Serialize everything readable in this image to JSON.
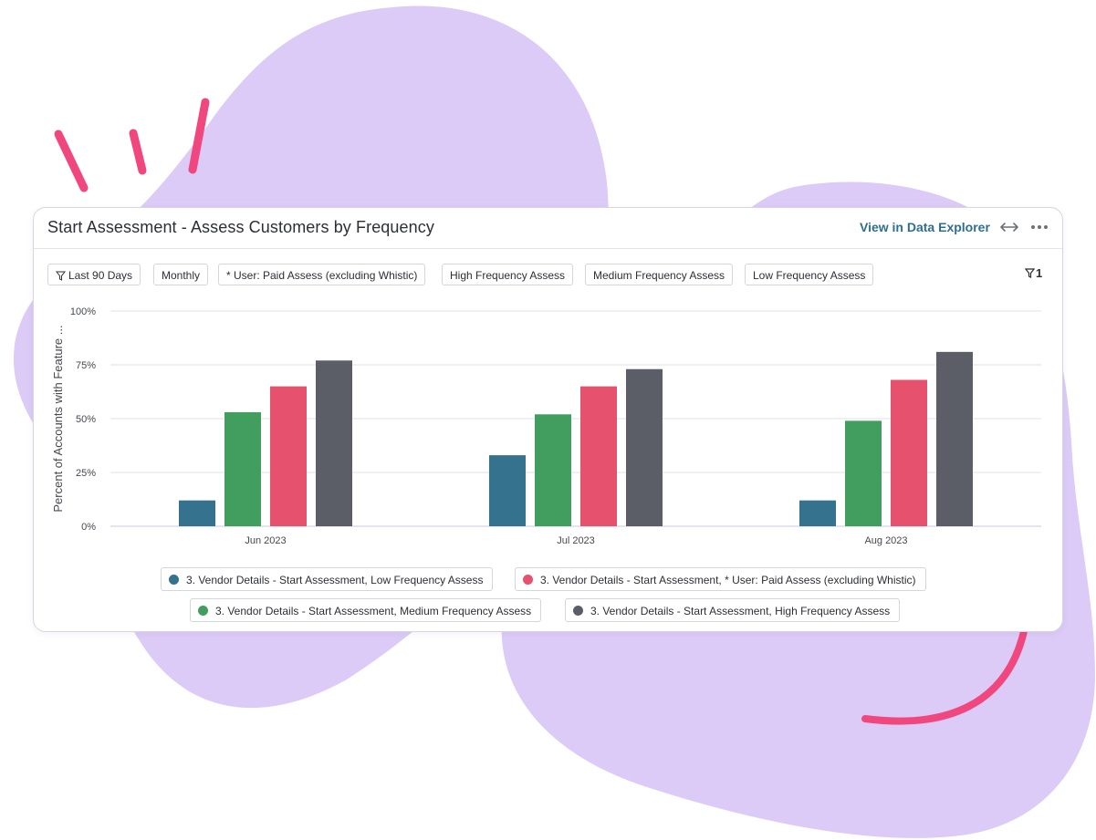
{
  "colors": {
    "blob": "#dccbf7",
    "accent_pink": "#f0477f",
    "link": "#2e6f8e"
  },
  "header": {
    "title": "Start Assessment - Assess Customers by Frequency",
    "explorer_link": "View in Data Explorer",
    "expand_icon": "expand-arrows-icon",
    "more_icon": "more-dots-icon"
  },
  "filters": {
    "chips": [
      {
        "label": "Last 90 Days",
        "icon": "filter-icon"
      },
      {
        "label": "Monthly"
      },
      {
        "label": "* User: Paid Assess (excluding Whistic)"
      },
      {
        "label": "High Frequency Assess"
      },
      {
        "label": "Medium Frequency Assess"
      },
      {
        "label": "Low Frequency Assess"
      }
    ],
    "count_label": "1",
    "count_icon": "filter-icon"
  },
  "chart_data": {
    "type": "bar",
    "categories": [
      "Jun 2023",
      "Jul 2023",
      "Aug 2023"
    ],
    "ylabel": "Percent of Accounts with Feature ...",
    "ylim": [
      0,
      100
    ],
    "yticks": [
      "0%",
      "25%",
      "50%",
      "75%",
      "100%"
    ],
    "grid": true,
    "legend_position": "bottom",
    "series": [
      {
        "name": "3. Vendor Details - Start Assessment, Low Frequency Assess",
        "color": "#35728d",
        "values": [
          12,
          33,
          12
        ]
      },
      {
        "name": "3. Vendor Details - Start Assessment, Medium Frequency Assess",
        "color": "#429e5e",
        "values": [
          53,
          52,
          49
        ]
      },
      {
        "name": "3. Vendor Details - Start Assessment, * User: Paid Assess (excluding Whistic)",
        "color": "#e6516e",
        "values": [
          65,
          65,
          68
        ]
      },
      {
        "name": "3. Vendor Details - Start Assessment, High Frequency Assess",
        "color": "#5b5e66",
        "values": [
          77,
          73,
          81
        ]
      }
    ]
  }
}
